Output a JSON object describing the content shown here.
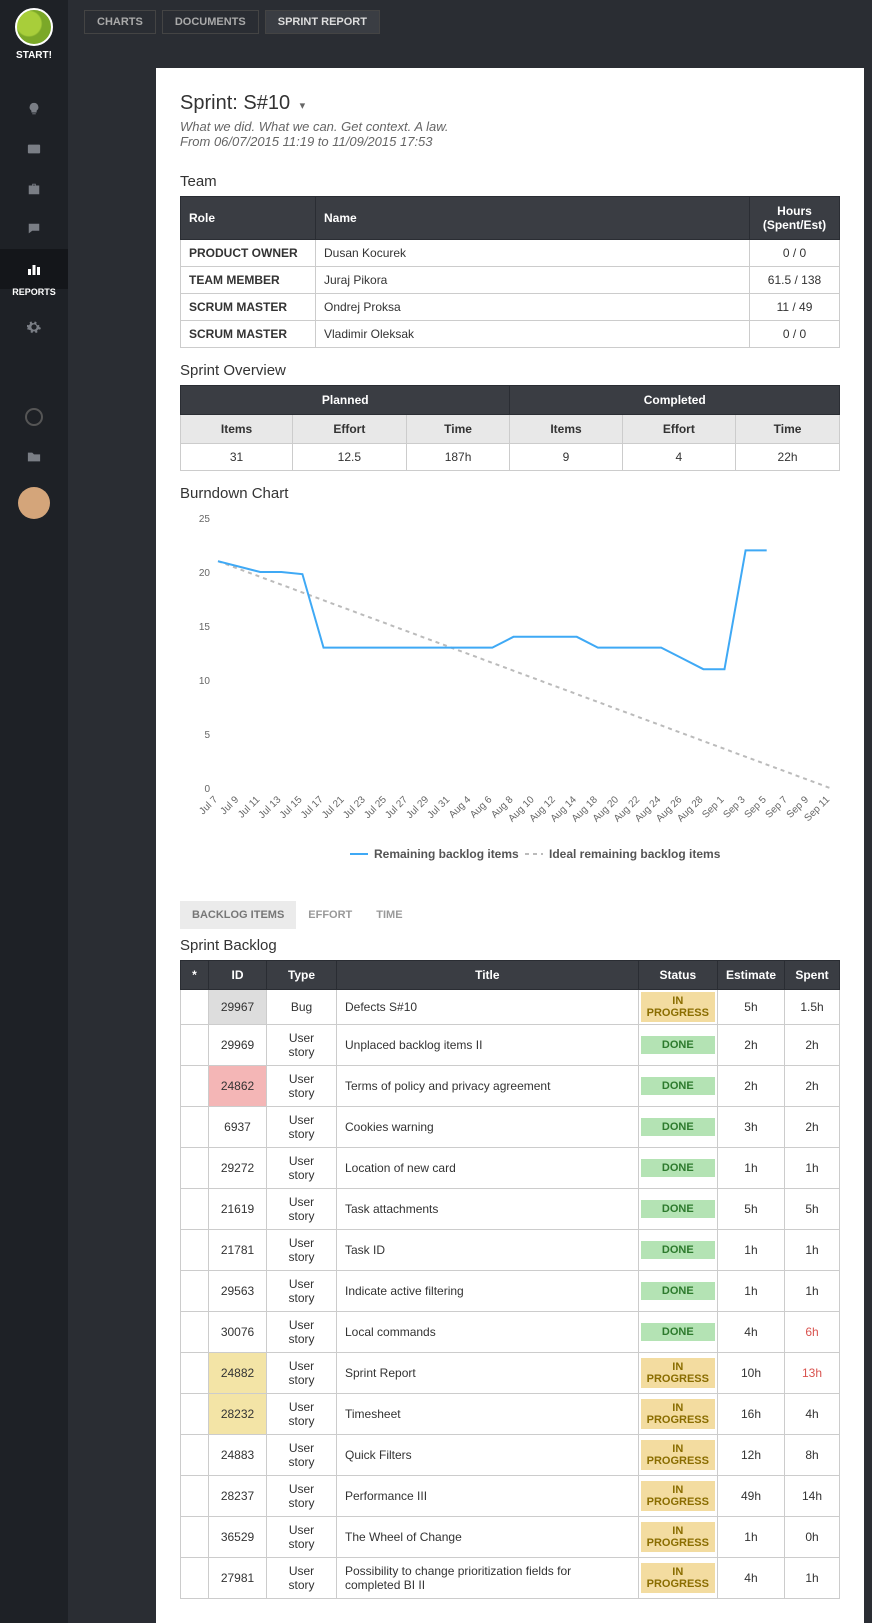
{
  "sidebar": {
    "start": "START!",
    "activeLabel": "REPORTS"
  },
  "topTabs": {
    "items": [
      {
        "label": "CHARTS",
        "active": false
      },
      {
        "label": "DOCUMENTS",
        "active": false
      },
      {
        "label": "SPRINT REPORT",
        "active": true
      }
    ]
  },
  "header": {
    "title": "Sprint: S#10",
    "subtitle": "What we did. What we can. Get context. A law.",
    "dates": "From 06/07/2015 11:19 to 11/09/2015 17:53"
  },
  "team": {
    "heading": "Team",
    "cols": {
      "role": "Role",
      "name": "Name",
      "hours": "Hours (Spent/Est)"
    },
    "rows": [
      {
        "role": "PRODUCT OWNER",
        "name": "Dusan Kocurek",
        "hours": "0 / 0"
      },
      {
        "role": "TEAM MEMBER",
        "name": "Juraj Pikora",
        "hours": "61.5 / 138"
      },
      {
        "role": "SCRUM MASTER",
        "name": "Ondrej Proksa",
        "hours": "11 / 49"
      },
      {
        "role": "SCRUM MASTER",
        "name": "Vladimir Oleksak",
        "hours": "0 / 0"
      }
    ]
  },
  "overview": {
    "heading": "Sprint Overview",
    "planned": "Planned",
    "completed": "Completed",
    "cols": {
      "items": "Items",
      "effort": "Effort",
      "time": "Time"
    },
    "vals": {
      "pItems": "31",
      "pEffort": "12.5",
      "pTime": "187h",
      "cItems": "9",
      "cEffort": "4",
      "cTime": "22h"
    }
  },
  "chart": {
    "heading": "Burndown Chart",
    "type": "line",
    "ylim": [
      0,
      25
    ],
    "yticks": [
      0,
      5,
      10,
      15,
      20,
      25
    ],
    "xlabels": [
      "Jul 7",
      "Jul 9",
      "Jul 11",
      "Jul 13",
      "Jul 15",
      "Jul 17",
      "Jul 21",
      "Jul 23",
      "Jul 25",
      "Jul 27",
      "Jul 29",
      "Jul 31",
      "Aug 4",
      "Aug 6",
      "Aug 8",
      "Aug 10",
      "Aug 12",
      "Aug 14",
      "Aug 18",
      "Aug 20",
      "Aug 22",
      "Aug 24",
      "Aug 26",
      "Aug 28",
      "Sep 1",
      "Sep 3",
      "Sep 5",
      "Sep 7",
      "Sep 9",
      "Sep 11"
    ],
    "series": {
      "remaining": {
        "label": "Remaining backlog items",
        "color": "#3fa9f5",
        "width": 2,
        "points": [
          [
            0,
            21
          ],
          [
            1,
            20.5
          ],
          [
            2,
            20
          ],
          [
            3,
            20
          ],
          [
            4,
            19.8
          ],
          [
            5,
            13
          ],
          [
            6,
            13
          ],
          [
            7,
            13
          ],
          [
            8,
            13
          ],
          [
            9,
            13
          ],
          [
            10,
            13
          ],
          [
            11,
            13
          ],
          [
            12,
            13
          ],
          [
            13,
            13
          ],
          [
            14,
            14
          ],
          [
            15,
            14
          ],
          [
            16,
            14
          ],
          [
            17,
            14
          ],
          [
            18,
            13
          ],
          [
            19,
            13
          ],
          [
            20,
            13
          ],
          [
            21,
            13
          ],
          [
            22,
            12
          ],
          [
            23,
            11
          ],
          [
            24,
            11
          ],
          [
            25,
            22
          ],
          [
            26,
            22
          ]
        ]
      },
      "ideal": {
        "label": "Ideal remaining backlog items",
        "color": "#bbbbbb",
        "width": 2,
        "dash": "4,4",
        "points": [
          [
            0,
            21
          ],
          [
            29,
            0
          ]
        ]
      }
    },
    "bg": "#ffffff",
    "grid": "#dddddd",
    "axis_font": 10,
    "legend_font": 12
  },
  "tabs": {
    "items": [
      {
        "label": "BACKLOG ITEMS",
        "active": true
      },
      {
        "label": "EFFORT",
        "active": false
      },
      {
        "label": "TIME",
        "active": false
      }
    ]
  },
  "backlog": {
    "heading": "Sprint Backlog",
    "cols": {
      "star": "*",
      "id": "ID",
      "type": "Type",
      "title": "Title",
      "status": "Status",
      "est": "Estimate",
      "spent": "Spent"
    },
    "statusColors": {
      "IN PROGRESS": {
        "bg": "#f3dca0",
        "fg": "#8a6d00"
      },
      "DONE": {
        "bg": "#b4e3b4",
        "fg": "#2d7a2d"
      },
      "TODO": {
        "bg": "#eeeeee",
        "fg": "#888888"
      }
    },
    "idColors": {
      "gray": "#dddddd",
      "red": "#f4b6b6",
      "yellow": "#f3e4a6",
      "none": "transparent"
    },
    "spentRed": "#d9534f",
    "rows": [
      {
        "id": "29967",
        "idBg": "gray",
        "type": "Bug",
        "title": "Defects S#10",
        "status": "IN PROGRESS",
        "est": "5h",
        "spent": "1.5h",
        "spentRed": false
      },
      {
        "id": "29969",
        "idBg": "none",
        "type": "User story",
        "title": "Unplaced backlog items II",
        "status": "DONE",
        "est": "2h",
        "spent": "2h",
        "spentRed": false
      },
      {
        "id": "24862",
        "idBg": "red",
        "type": "User story",
        "title": "Terms of policy and privacy agreement",
        "status": "DONE",
        "est": "2h",
        "spent": "2h",
        "spentRed": false
      },
      {
        "id": "6937",
        "idBg": "none",
        "type": "User story",
        "title": "Cookies warning",
        "status": "DONE",
        "est": "3h",
        "spent": "2h",
        "spentRed": false
      },
      {
        "id": "29272",
        "idBg": "none",
        "type": "User story",
        "title": "Location of new card",
        "status": "DONE",
        "est": "1h",
        "spent": "1h",
        "spentRed": false
      },
      {
        "id": "21619",
        "idBg": "none",
        "type": "User story",
        "title": "Task attachments",
        "status": "DONE",
        "est": "5h",
        "spent": "5h",
        "spentRed": false
      },
      {
        "id": "21781",
        "idBg": "none",
        "type": "User story",
        "title": "Task ID",
        "status": "DONE",
        "est": "1h",
        "spent": "1h",
        "spentRed": false
      },
      {
        "id": "29563",
        "idBg": "none",
        "type": "User story",
        "title": "Indicate active filtering",
        "status": "DONE",
        "est": "1h",
        "spent": "1h",
        "spentRed": false
      },
      {
        "id": "30076",
        "idBg": "none",
        "type": "User story",
        "title": "Local commands",
        "status": "DONE",
        "est": "4h",
        "spent": "6h",
        "spentRed": true
      },
      {
        "id": "24882",
        "idBg": "yellow",
        "type": "User story",
        "title": "Sprint Report",
        "status": "IN PROGRESS",
        "est": "10h",
        "spent": "13h",
        "spentRed": true
      },
      {
        "id": "28232",
        "idBg": "yellow",
        "type": "User story",
        "title": "Timesheet",
        "status": "IN PROGRESS",
        "est": "16h",
        "spent": "4h",
        "spentRed": false
      },
      {
        "id": "24883",
        "idBg": "none",
        "type": "User story",
        "title": "Quick Filters",
        "status": "IN PROGRESS",
        "est": "12h",
        "spent": "8h",
        "spentRed": false
      },
      {
        "id": "28237",
        "idBg": "none",
        "type": "User story",
        "title": "Performance III",
        "status": "IN PROGRESS",
        "est": "49h",
        "spent": "14h",
        "spentRed": false
      },
      {
        "id": "36529",
        "idBg": "none",
        "type": "User story",
        "title": "The Wheel of Change",
        "status": "IN PROGRESS",
        "est": "1h",
        "spent": "0h",
        "spentRed": false
      },
      {
        "id": "27981",
        "idBg": "none",
        "type": "User story",
        "title": "Possibility to change prioritization fields for completed BI II",
        "status": "IN PROGRESS",
        "est": "4h",
        "spent": "1h",
        "spentRed": false
      }
    ]
  }
}
